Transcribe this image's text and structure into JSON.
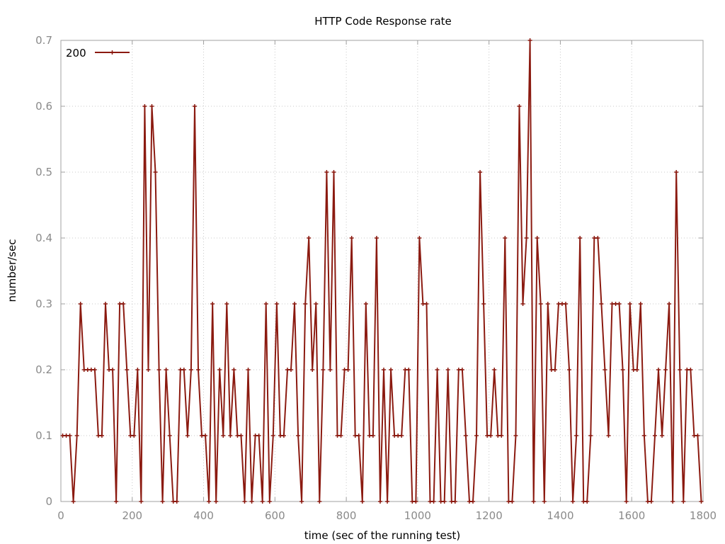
{
  "chart_data": {
    "type": "line",
    "title": "HTTP Code Response rate",
    "xlabel": "time (sec of the running test)",
    "ylabel": "number/sec",
    "xlim": [
      0,
      1800
    ],
    "ylim": [
      0,
      0.7
    ],
    "x_ticks": [
      "0",
      "200",
      "400",
      "600",
      "800",
      "1000",
      "1200",
      "1400",
      "1600",
      "1800"
    ],
    "y_ticks": [
      "0",
      "0.1",
      "0.2",
      "0.3",
      "0.4",
      "0.5",
      "0.6",
      "0.7"
    ],
    "grid": true,
    "legend_position": "top-left",
    "series": [
      {
        "name": "200",
        "color": "#8b1a10",
        "x": [
          5,
          15,
          25,
          35,
          45,
          55,
          65,
          75,
          85,
          95,
          105,
          115,
          125,
          135,
          145,
          155,
          165,
          175,
          185,
          195,
          205,
          215,
          225,
          235,
          245,
          255,
          265,
          275,
          285,
          295,
          305,
          315,
          325,
          335,
          345,
          355,
          365,
          375,
          385,
          395,
          405,
          415,
          425,
          435,
          445,
          455,
          465,
          475,
          485,
          495,
          505,
          515,
          525,
          535,
          545,
          555,
          565,
          575,
          585,
          595,
          605,
          615,
          625,
          635,
          645,
          655,
          665,
          675,
          685,
          695,
          705,
          715,
          725,
          735,
          745,
          755,
          765,
          775,
          785,
          795,
          805,
          815,
          825,
          835,
          845,
          855,
          865,
          875,
          885,
          895,
          905,
          915,
          925,
          935,
          945,
          955,
          965,
          975,
          985,
          995,
          1005,
          1015,
          1025,
          1035,
          1045,
          1055,
          1065,
          1075,
          1085,
          1095,
          1105,
          1115,
          1125,
          1135,
          1145,
          1155,
          1165,
          1175,
          1185,
          1195,
          1205,
          1215,
          1225,
          1235,
          1245,
          1255,
          1265,
          1275,
          1285,
          1295,
          1305,
          1315,
          1325,
          1335,
          1345,
          1355,
          1365,
          1375,
          1385,
          1395,
          1405,
          1415,
          1425,
          1435,
          1445,
          1455,
          1465,
          1475,
          1485,
          1495,
          1505,
          1515,
          1525,
          1535,
          1545,
          1555,
          1565,
          1575,
          1585,
          1595,
          1605,
          1615,
          1625,
          1635,
          1645,
          1655,
          1665,
          1675,
          1685,
          1695,
          1705,
          1715,
          1725,
          1735,
          1745,
          1755,
          1765,
          1775,
          1785,
          1795
        ],
        "y": [
          0.1,
          0.1,
          0.1,
          0,
          0.1,
          0.3,
          0.2,
          0.2,
          0.2,
          0.2,
          0.1,
          0.1,
          0.3,
          0.2,
          0.2,
          0,
          0.3,
          0.3,
          0.2,
          0.1,
          0.1,
          0.2,
          0,
          0.6,
          0.2,
          0.6,
          0.5,
          0.2,
          0,
          0.2,
          0.1,
          0,
          0,
          0.2,
          0.2,
          0.1,
          0.2,
          0.6,
          0.2,
          0.1,
          0.1,
          0,
          0.3,
          0,
          0.2,
          0.1,
          0.3,
          0.1,
          0.2,
          0.1,
          0.1,
          0,
          0.2,
          0,
          0.1,
          0.1,
          0,
          0.3,
          0,
          0.1,
          0.3,
          0.1,
          0.1,
          0.2,
          0.2,
          0.3,
          0.1,
          0,
          0.3,
          0.4,
          0.2,
          0.3,
          0,
          0.2,
          0.5,
          0.2,
          0.5,
          0.1,
          0.1,
          0.2,
          0.2,
          0.4,
          0.1,
          0.1,
          0,
          0.3,
          0.1,
          0.1,
          0.4,
          0,
          0.2,
          0,
          0.2,
          0.1,
          0.1,
          0.1,
          0.2,
          0.2,
          0,
          0,
          0.4,
          0.3,
          0.3,
          0,
          0,
          0.2,
          0,
          0,
          0.2,
          0,
          0,
          0.2,
          0.2,
          0.1,
          0,
          0,
          0.1,
          0.5,
          0.3,
          0.1,
          0.1,
          0.2,
          0.1,
          0.1,
          0.4,
          0,
          0,
          0.1,
          0.6,
          0.3,
          0.4,
          0.7,
          0,
          0.4,
          0.3,
          0,
          0.3,
          0.2,
          0.2,
          0.3,
          0.3,
          0.3,
          0.2,
          0,
          0.1,
          0.4,
          0,
          0,
          0.1,
          0.4,
          0.4,
          0.3,
          0.2,
          0.1,
          0.3,
          0.3,
          0.3,
          0.2,
          0,
          0.3,
          0.2,
          0.2,
          0.3,
          0.1,
          0,
          0,
          0.1,
          0.2,
          0.1,
          0.2,
          0.3,
          0,
          0.5,
          0.2,
          0,
          0.2,
          0.2,
          0.1,
          0.1,
          0
        ]
      }
    ]
  }
}
